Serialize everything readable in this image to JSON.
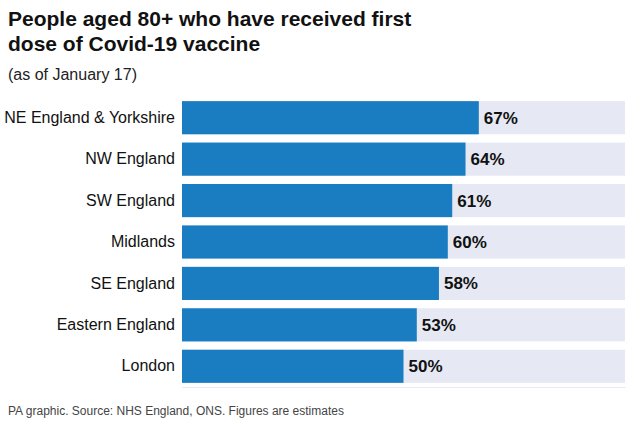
{
  "chart_data": {
    "type": "bar",
    "orientation": "horizontal",
    "title": "People aged 80+ who have received first dose of Covid-19 vaccine",
    "subtitle": "(as of January 17)",
    "footer": "PA graphic. Source: NHS England, ONS. Figures are estimates",
    "categories": [
      "NE England & Yorkshire",
      "NW England",
      "SW England",
      "Midlands",
      "SE England",
      "Eastern England",
      "London"
    ],
    "values": [
      67,
      64,
      61,
      60,
      58,
      53,
      50
    ],
    "value_labels": [
      "67%",
      "64%",
      "61%",
      "60%",
      "58%",
      "53%",
      "50%"
    ],
    "color": "#1a7dc2",
    "xlim": [
      0,
      100
    ],
    "xticks": [],
    "data_labels": true,
    "tick_labels": "y",
    "grid": false
  }
}
